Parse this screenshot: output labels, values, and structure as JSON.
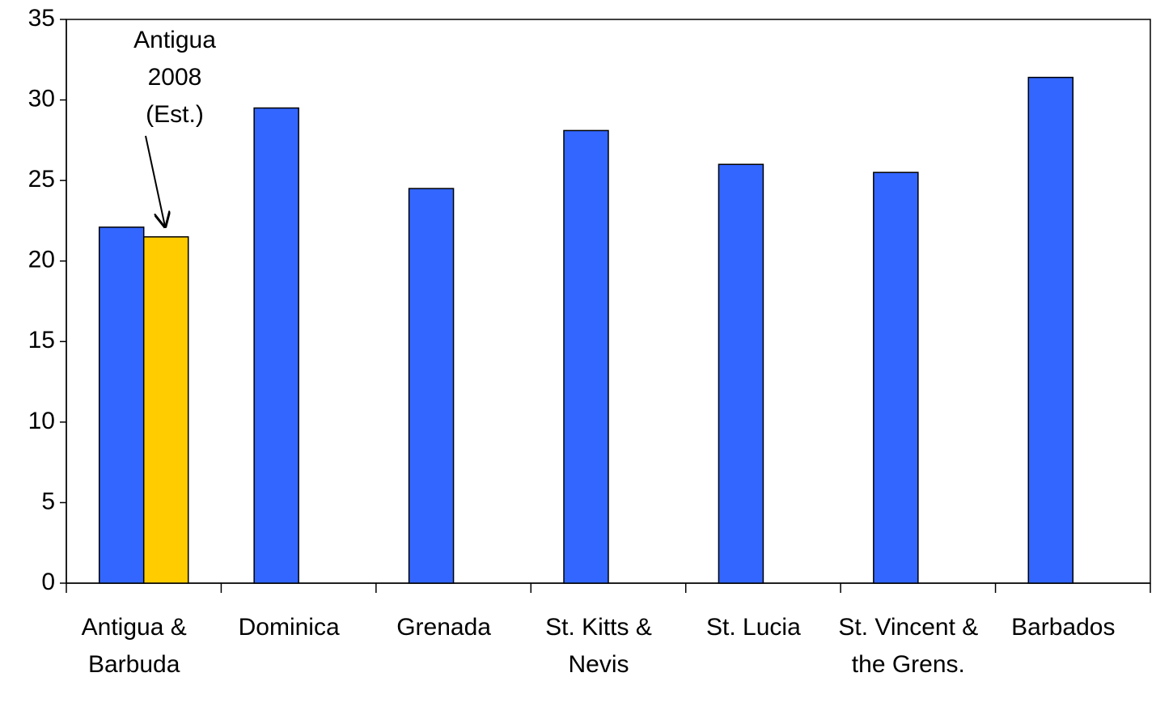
{
  "chart_data": {
    "type": "bar",
    "categories": [
      "Antigua & Barbuda",
      "Dominica",
      "Grenada",
      "St. Kitts & Nevis",
      "St. Lucia",
      "St. Vincent & the Grens.",
      "Barbados"
    ],
    "series": [
      {
        "color": "#3366ff",
        "values": [
          22.1,
          29.5,
          24.5,
          28.1,
          26,
          25.5,
          31.4
        ]
      },
      {
        "color": "#ffcc00",
        "values": [
          21.5,
          null,
          null,
          null,
          null,
          null,
          null
        ]
      }
    ],
    "ylim": [
      0,
      35
    ],
    "yticks": [
      0,
      5,
      10,
      15,
      20,
      25,
      30,
      35
    ],
    "annotation": "Antigua 2008 (Est.)"
  }
}
